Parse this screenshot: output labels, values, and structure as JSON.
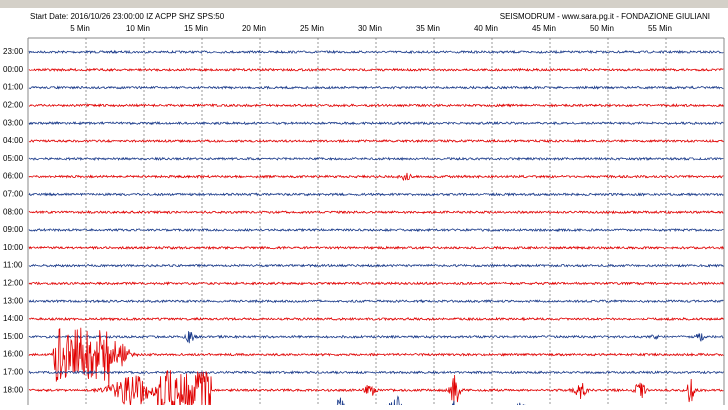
{
  "header": {
    "left": "Start Date: 2016/10/26 23:00:00 IZ ACPP SHZ SPS:50",
    "right": "SEISMODRUM - www.sara.pg.it - FONDAZIONE GIULIANI"
  },
  "minute_labels": [
    "5 Min",
    "10 Min",
    "15 Min",
    "20 Min",
    "25 Min",
    "30 Min",
    "35 Min",
    "40 Min",
    "45 Min",
    "50 Min",
    "55 Min"
  ],
  "hour_labels": [
    "23:00",
    "00:00",
    "01:00",
    "02:00",
    "03:00",
    "04:00",
    "05:00",
    "06:00",
    "07:00",
    "08:00",
    "09:00",
    "10:00",
    "11:00",
    "12:00",
    "13:00",
    "14:00",
    "15:00",
    "16:00",
    "17:00",
    "18:00"
  ]
}
